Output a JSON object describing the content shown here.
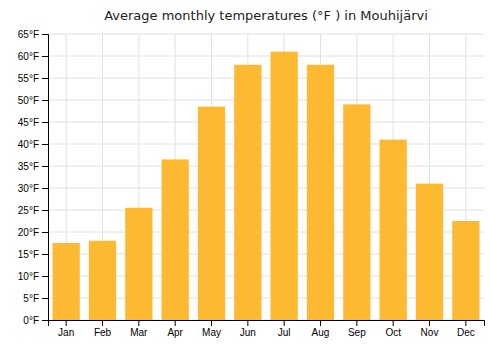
{
  "chart_data": {
    "type": "bar",
    "title": "Average monthly temperatures (°F ) in Mouhijärvi",
    "categories": [
      "Jan",
      "Feb",
      "Mar",
      "Apr",
      "May",
      "Jun",
      "Jul",
      "Aug",
      "Sep",
      "Oct",
      "Nov",
      "Dec"
    ],
    "values": [
      17.5,
      18.0,
      25.5,
      36.5,
      48.5,
      58.0,
      61.0,
      58.0,
      49.0,
      41.0,
      31.0,
      22.5
    ],
    "color": "#FDB931",
    "ylim": [
      0,
      65
    ],
    "yticks": [
      {
        "value": 0,
        "label": "0°F"
      },
      {
        "value": 5,
        "label": "5°F"
      },
      {
        "value": 10,
        "label": "10°F"
      },
      {
        "value": 15,
        "label": "15°F"
      },
      {
        "value": 20,
        "label": "20°F"
      },
      {
        "value": 25,
        "label": "25°F"
      },
      {
        "value": 30,
        "label": "30°F"
      },
      {
        "value": 35,
        "label": "35°F"
      },
      {
        "value": 40,
        "label": "40°F"
      },
      {
        "value": 45,
        "label": "45°F"
      },
      {
        "value": 50,
        "label": "50°F"
      },
      {
        "value": 55,
        "label": "55°F"
      },
      {
        "value": 60,
        "label": "60°F"
      },
      {
        "value": 65,
        "label": "65°F"
      }
    ],
    "grid": true
  }
}
